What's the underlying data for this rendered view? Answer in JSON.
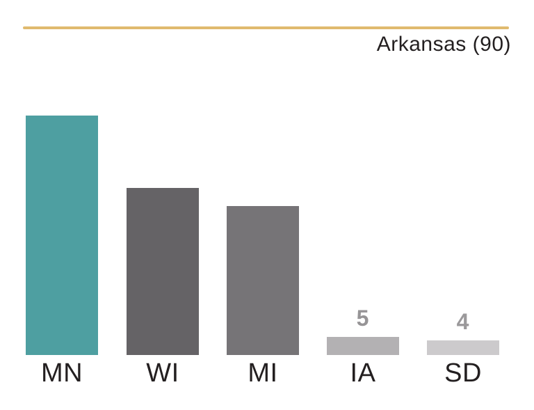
{
  "page": {
    "background_color": "#ffffff"
  },
  "header": {
    "divider_color": "#e0ba6e",
    "title": "Arkansas (90)",
    "title_color": "#231f20"
  },
  "chart_data": {
    "type": "bar",
    "title": "Arkansas (90)",
    "categories": [
      "MN",
      "WI",
      "MI",
      "IA",
      "SD"
    ],
    "values": [
      66,
      46,
      41,
      5,
      4
    ],
    "bar_colors": [
      "#4e9fa1",
      "#656366",
      "#767477",
      "#b3b1b3",
      "#cccacc"
    ],
    "value_label_styles": [
      "inside-white",
      "inside-white",
      "inside-white",
      "above-gray",
      "above-gray"
    ],
    "value_label_colors": [
      "#ffffff",
      "#ffffff",
      "#ffffff",
      "#969496",
      "#9b999b"
    ],
    "category_label_color": "#231f20",
    "xlabel": "",
    "ylabel": "",
    "ylim": [
      0,
      90
    ],
    "grid": false,
    "legend_position": "none"
  }
}
